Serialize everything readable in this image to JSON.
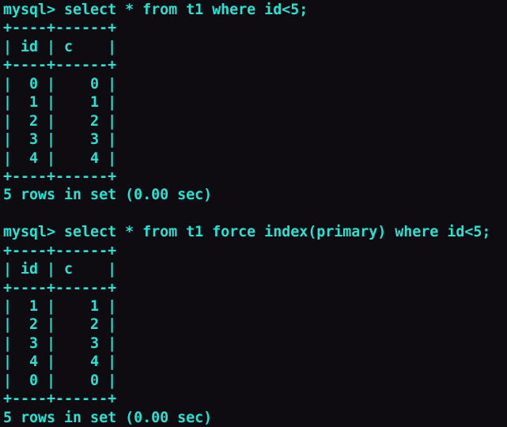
{
  "terminal": {
    "colors": {
      "background": "#0e0b11",
      "foreground": "#29e2d2"
    },
    "blocks": [
      {
        "command_line": "mysql> select * from t1 where id<5;",
        "table": {
          "top_border": "+----+------+",
          "header": "| id | c    |",
          "header_separator": "+----+------+",
          "rows": [
            "|  0 |    0 |",
            "|  1 |    1 |",
            "|  2 |    2 |",
            "|  3 |    3 |",
            "|  4 |    4 |"
          ],
          "bottom_border": "+----+------+"
        },
        "status_line": "5 rows in set (0.00 sec)"
      },
      {
        "command_line": "mysql> select * from t1 force index(primary) where id<5;",
        "table": {
          "top_border": "+----+------+",
          "header": "| id | c    |",
          "header_separator": "+----+------+",
          "rows": [
            "|  1 |    1 |",
            "|  2 |    2 |",
            "|  3 |    3 |",
            "|  4 |    4 |",
            "|  0 |    0 |"
          ],
          "bottom_border": "+----+------+"
        },
        "status_line": "5 rows in set (0.00 sec)"
      }
    ]
  }
}
